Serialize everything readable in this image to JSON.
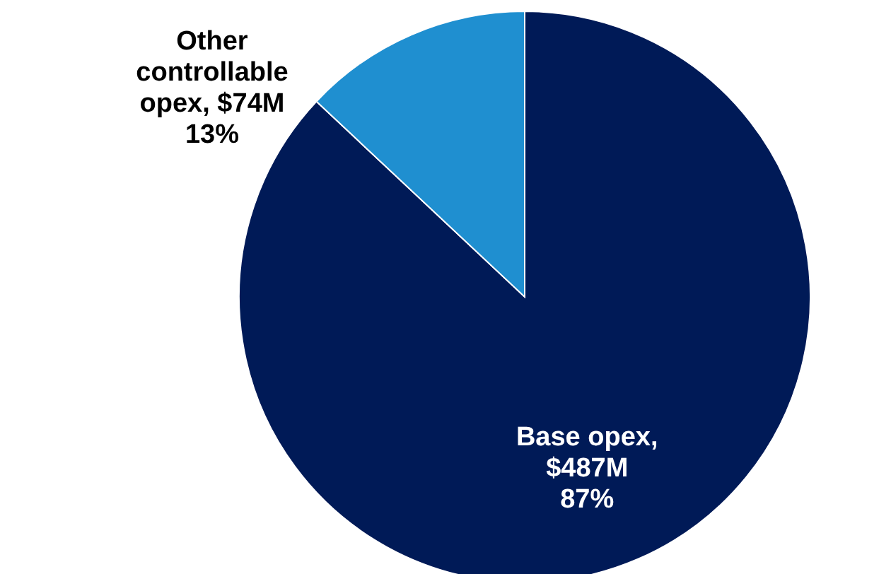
{
  "chart_data": {
    "type": "pie",
    "categories": [
      "Base opex, $487M",
      "Other controllable opex, $74M"
    ],
    "values": [
      87,
      13
    ],
    "colors": [
      "#001a57",
      "#1f8fd0"
    ],
    "value_labels": [
      "87%",
      "13%"
    ]
  }
}
